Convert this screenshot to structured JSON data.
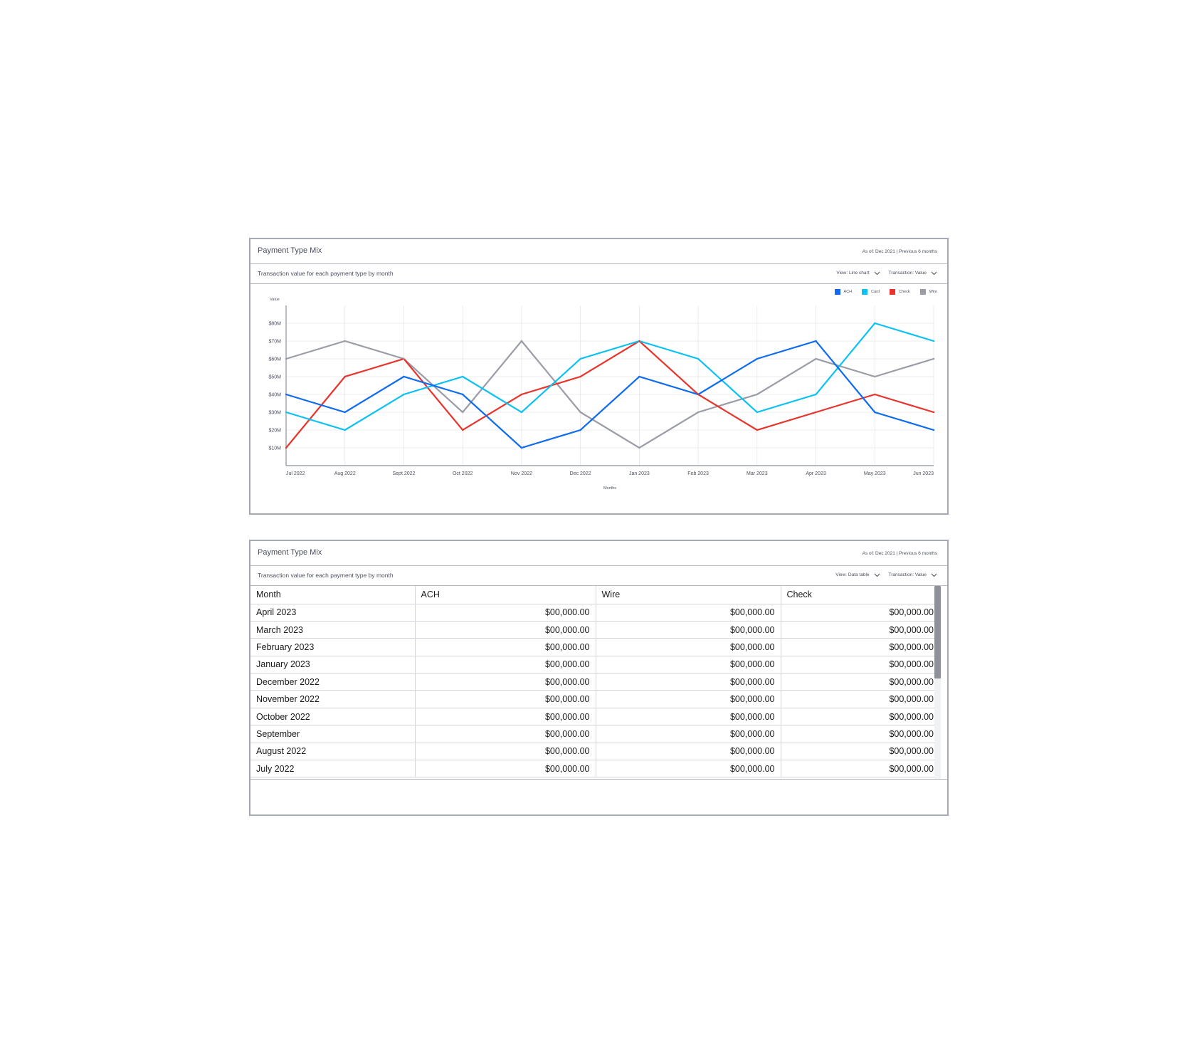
{
  "chart_card": {
    "title": "Payment Type Mix",
    "as_of": "As of: Dec 2021 | Previous 6 months",
    "subtitle": "Transaction value for each payment type by month",
    "view_label": "View: Line chart",
    "transaction_label": "Transaction: Value"
  },
  "table_card": {
    "title": "Payment Type Mix",
    "as_of": "As of: Dec 2021 | Previous 6 months",
    "subtitle": "Transaction value for each payment type by month",
    "view_label": "View: Data table",
    "transaction_label": "Transaction: Value",
    "columns": [
      "Month",
      "ACH",
      "Wire",
      "Check"
    ],
    "rows": [
      [
        "April 2023",
        "$00,000.00",
        "$00,000.00",
        "$00,000.00"
      ],
      [
        "March 2023",
        "$00,000.00",
        "$00,000.00",
        "$00,000.00"
      ],
      [
        "February 2023",
        "$00,000.00",
        "$00,000.00",
        "$00,000.00"
      ],
      [
        "January 2023",
        "$00,000.00",
        "$00,000.00",
        "$00,000.00"
      ],
      [
        "December 2022",
        "$00,000.00",
        "$00,000.00",
        "$00,000.00"
      ],
      [
        "November 2022",
        "$00,000.00",
        "$00,000.00",
        "$00,000.00"
      ],
      [
        "October 2022",
        "$00,000.00",
        "$00,000.00",
        "$00,000.00"
      ],
      [
        "September",
        "$00,000.00",
        "$00,000.00",
        "$00,000.00"
      ],
      [
        "August 2022",
        "$00,000.00",
        "$00,000.00",
        "$00,000.00"
      ],
      [
        "July 2022",
        "$00,000.00",
        "$00,000.00",
        "$00,000.00"
      ]
    ]
  },
  "icons": {
    "dropdown": "chevron-down-icon"
  },
  "chart_data": {
    "type": "line",
    "categories": [
      "Jul 2022",
      "Aug 2022",
      "Sept 2022",
      "Oct 2022",
      "Nov 2022",
      "Dec 2022",
      "Jan 2023",
      "Feb 2023",
      "Mar 2023",
      "Apr 2023",
      "May 2023",
      "Jun 2023"
    ],
    "xlabel": "Months",
    "ylabel": "Value",
    "ylim": [
      0,
      90
    ],
    "yticks": [
      10,
      20,
      30,
      40,
      50,
      60,
      70,
      80
    ],
    "ytick_labels": [
      "$10M",
      "$20M",
      "$30M",
      "$40M",
      "$50M",
      "$60M",
      "$70M",
      "$80M"
    ],
    "grid": true,
    "legend": "top-right",
    "series": [
      {
        "name": "ACH",
        "color": "#0f6cf0",
        "values": [
          40,
          30,
          50,
          40,
          10,
          20,
          50,
          40,
          60,
          70,
          30,
          20
        ]
      },
      {
        "name": "Card",
        "color": "#0dc2f2",
        "values": [
          30,
          20,
          40,
          50,
          30,
          60,
          70,
          60,
          30,
          40,
          80,
          70
        ]
      },
      {
        "name": "Check",
        "color": "#e8342c",
        "values": [
          10,
          50,
          60,
          20,
          40,
          50,
          70,
          40,
          20,
          30,
          40,
          30
        ]
      },
      {
        "name": "Wire",
        "color": "#9a9ca6",
        "values": [
          60,
          70,
          60,
          30,
          70,
          30,
          10,
          30,
          40,
          60,
          50,
          60
        ]
      }
    ]
  }
}
